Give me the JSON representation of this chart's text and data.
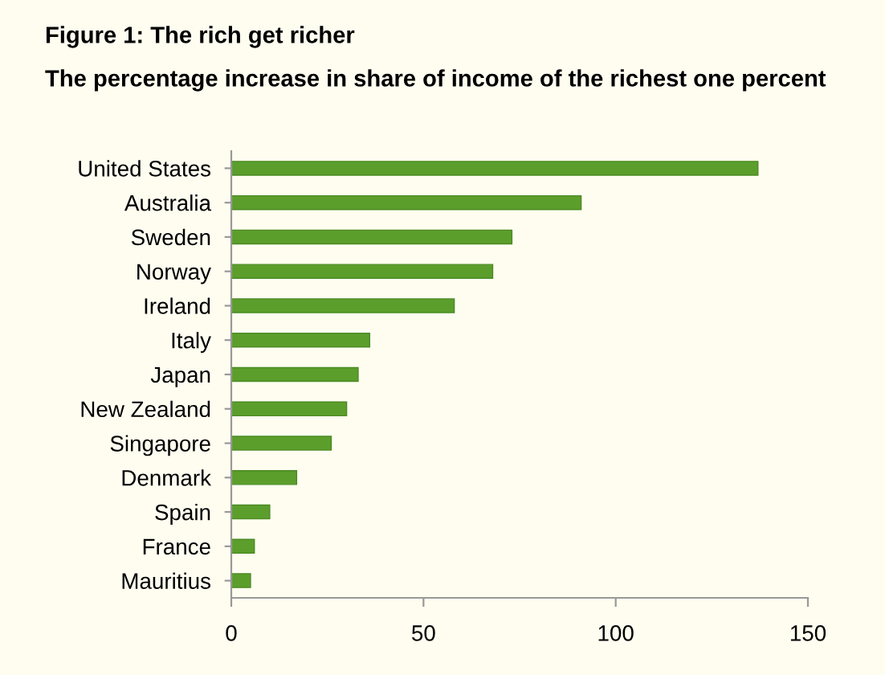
{
  "chart_data": {
    "type": "bar",
    "orientation": "horizontal",
    "title": "Figure 1: The rich get richer",
    "subtitle": "The percentage increase in share of income of the richest one percent",
    "categories": [
      "United States",
      "Australia",
      "Sweden",
      "Norway",
      "Ireland",
      "Italy",
      "Japan",
      "New Zealand",
      "Singapore",
      "Denmark",
      "Spain",
      "France",
      "Mauritius"
    ],
    "values": [
      137,
      91,
      73,
      68,
      58,
      36,
      33,
      30,
      26,
      17,
      10,
      6,
      5
    ],
    "color": "#5c9e2c",
    "xlim": [
      0,
      150
    ],
    "xticks": [
      0,
      50,
      100,
      150
    ],
    "grid": false
  }
}
